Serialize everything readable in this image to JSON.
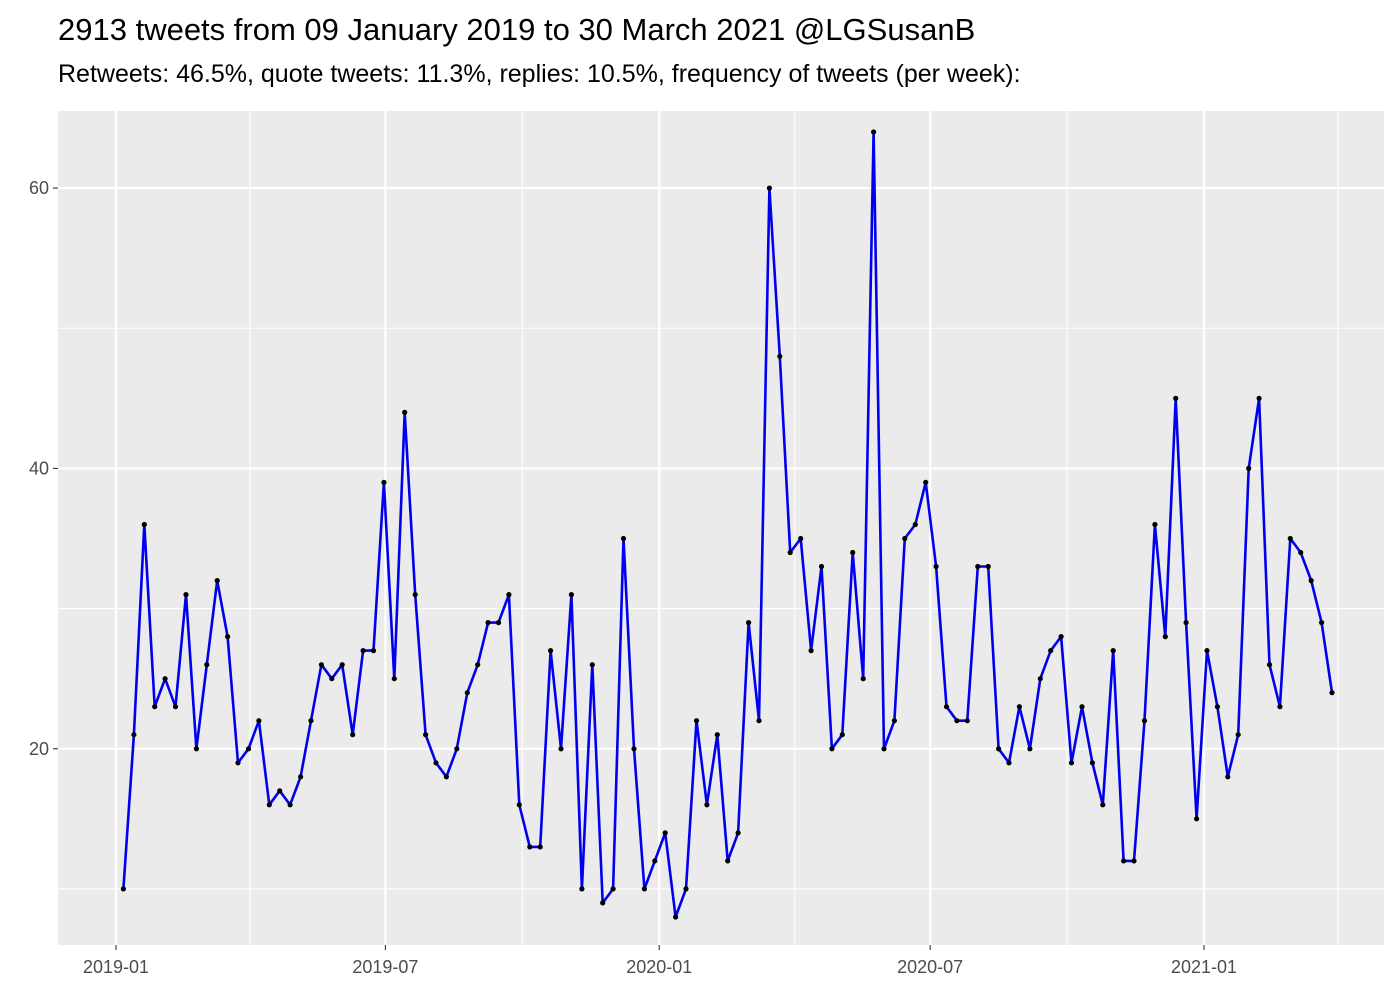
{
  "chart_data": {
    "type": "line",
    "title": "2913 tweets from 09 January 2019 to 30 March 2021 @LGSusanB",
    "subtitle": "Retweets: 46.5%, quote tweets: 11.3%, replies: 10.5%, frequency of tweets (per week):",
    "xlabel": "",
    "ylabel": "",
    "x_start_date": "2019-01-06",
    "x_interval_days": 7,
    "x_ticks": [
      "2019-01",
      "2019-07",
      "2020-01",
      "2020-07",
      "2021-01"
    ],
    "y_ticks": [
      20,
      40,
      60
    ],
    "ylim": [
      6,
      65.5
    ],
    "grid": true,
    "background": "#ebebeb",
    "line_color": "#0000ee",
    "point_color": "#000000",
    "series": [
      {
        "values": [
          10,
          21,
          36,
          23,
          25,
          23,
          31,
          20,
          26,
          32,
          28,
          19,
          20,
          22,
          16,
          17,
          16,
          18,
          22,
          26,
          25,
          26,
          21,
          27,
          27,
          39,
          25,
          44,
          31,
          21,
          19,
          18,
          20,
          24,
          26,
          29,
          29,
          31,
          16,
          13,
          13,
          27,
          20,
          31,
          10,
          26,
          9,
          10,
          35,
          20,
          10,
          12,
          14,
          8,
          10,
          22,
          16,
          21,
          12,
          14,
          29,
          22,
          60,
          48,
          34,
          35,
          27,
          33,
          20,
          21,
          34,
          25,
          64,
          20,
          22,
          35,
          36,
          39,
          33,
          23,
          22,
          22,
          33,
          33,
          20,
          19,
          23,
          20,
          25,
          27,
          28,
          19,
          23,
          19,
          16,
          27,
          12,
          12,
          22,
          36,
          28,
          45,
          29,
          15,
          27,
          23,
          18,
          21,
          40,
          45,
          26,
          23,
          35,
          34,
          32,
          29,
          24
        ]
      }
    ]
  }
}
